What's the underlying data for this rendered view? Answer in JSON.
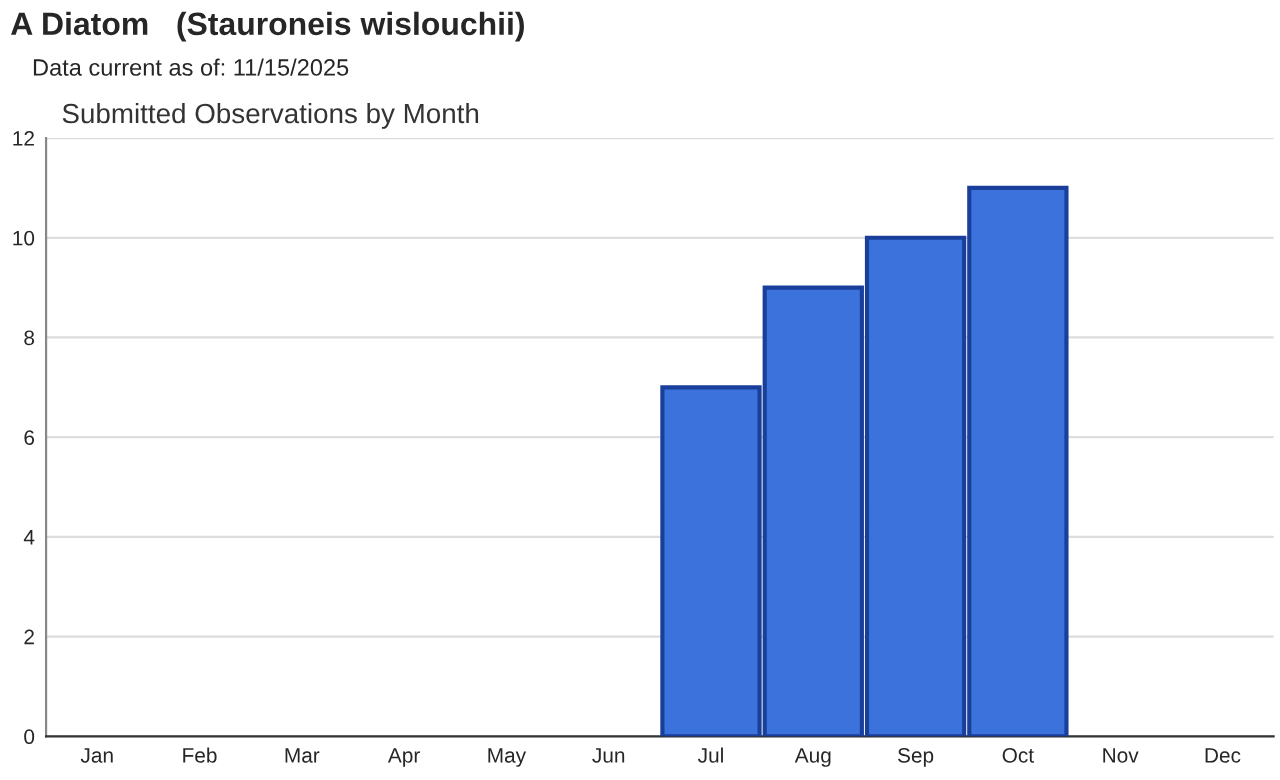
{
  "chart_data": {
    "type": "bar",
    "title": "A Diatom   (Stauroneis wislouchii)",
    "subtitle": "Data current as of: 11/15/2025",
    "annotations": [
      "Submitted Observations by Month"
    ],
    "categories": [
      "Jan",
      "Feb",
      "Mar",
      "Apr",
      "May",
      "Jun",
      "Jul",
      "Aug",
      "Sep",
      "Oct",
      "Nov",
      "Dec"
    ],
    "values": [
      0,
      0,
      0,
      0,
      0,
      0,
      7,
      9,
      10,
      11,
      0,
      0
    ],
    "color": "#3c72dc",
    "ylim": [
      0,
      12
    ],
    "yticks": [
      0,
      2,
      4,
      6,
      8,
      10,
      12
    ],
    "grid": "y"
  }
}
